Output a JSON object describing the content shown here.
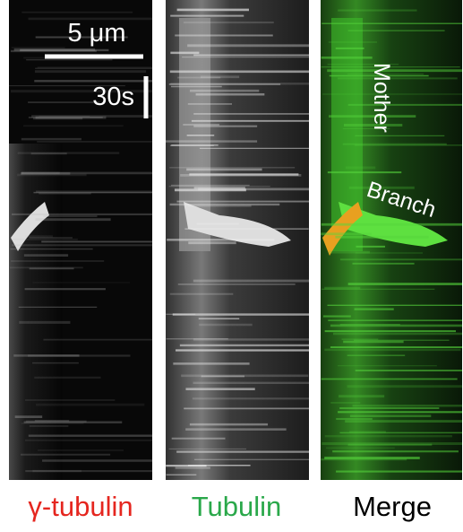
{
  "scale_bar": {
    "length_label": "5 μm",
    "time_label": "30s"
  },
  "annotations": {
    "mother": "Mother",
    "branch": "Branch"
  },
  "panels": [
    {
      "label": "γ-tubulin"
    },
    {
      "label": "Tubulin"
    },
    {
      "label": "Merge"
    }
  ]
}
